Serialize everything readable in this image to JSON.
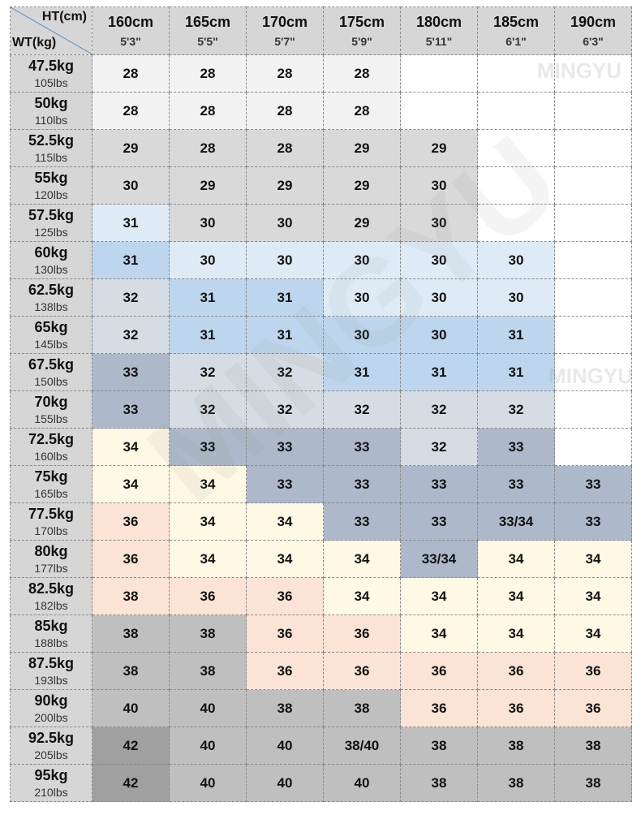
{
  "header": {
    "corner_ht": "HT(cm)",
    "corner_wt": "WT(kg)",
    "heights": [
      {
        "cm": "160cm",
        "ft": "5'3\""
      },
      {
        "cm": "165cm",
        "ft": "5'5\""
      },
      {
        "cm": "170cm",
        "ft": "5'7\""
      },
      {
        "cm": "175cm",
        "ft": "5'9\""
      },
      {
        "cm": "180cm",
        "ft": "5'11\""
      },
      {
        "cm": "185cm",
        "ft": "6'1\""
      },
      {
        "cm": "190cm",
        "ft": "6'3\""
      }
    ]
  },
  "watermark": "MINGYU",
  "colors": {
    "header": "#d6d6d6",
    "blank": "#ffffff",
    "light_gray": "#f2f2f2",
    "gray": "#d9d9d9",
    "light_blue": "#deebf6",
    "blue": "#bdd6ee",
    "blue_gray": "#d6dce4",
    "slate": "#adb9ca",
    "cream": "#fef2d0",
    "cream_light": "#fff8e5",
    "peach": "#fbe4d5",
    "mid_gray": "#bfbfbf",
    "dark_gray": "#a6a6a6",
    "darker_gray": "#a0a0a0"
  },
  "rows": [
    {
      "kg": "47.5kg",
      "lbs": "105lbs",
      "cells": [
        {
          "v": "28",
          "c": "light_gray"
        },
        {
          "v": "28",
          "c": "light_gray"
        },
        {
          "v": "28",
          "c": "light_gray"
        },
        {
          "v": "28",
          "c": "light_gray"
        },
        {
          "v": "",
          "c": "blank"
        },
        {
          "v": "",
          "c": "blank"
        },
        {
          "v": "",
          "c": "blank"
        }
      ]
    },
    {
      "kg": "50kg",
      "lbs": "110lbs",
      "cells": [
        {
          "v": "28",
          "c": "light_gray"
        },
        {
          "v": "28",
          "c": "light_gray"
        },
        {
          "v": "28",
          "c": "light_gray"
        },
        {
          "v": "28",
          "c": "light_gray"
        },
        {
          "v": "",
          "c": "blank"
        },
        {
          "v": "",
          "c": "blank"
        },
        {
          "v": "",
          "c": "blank"
        }
      ]
    },
    {
      "kg": "52.5kg",
      "lbs": "115lbs",
      "cells": [
        {
          "v": "29",
          "c": "gray"
        },
        {
          "v": "28",
          "c": "gray"
        },
        {
          "v": "28",
          "c": "gray"
        },
        {
          "v": "29",
          "c": "gray"
        },
        {
          "v": "29",
          "c": "gray"
        },
        {
          "v": "",
          "c": "blank"
        },
        {
          "v": "",
          "c": "blank"
        }
      ]
    },
    {
      "kg": "55kg",
      "lbs": "120lbs",
      "cells": [
        {
          "v": "30",
          "c": "gray"
        },
        {
          "v": "29",
          "c": "gray"
        },
        {
          "v": "29",
          "c": "gray"
        },
        {
          "v": "29",
          "c": "gray"
        },
        {
          "v": "30",
          "c": "gray"
        },
        {
          "v": "",
          "c": "blank"
        },
        {
          "v": "",
          "c": "blank"
        }
      ]
    },
    {
      "kg": "57.5kg",
      "lbs": "125lbs",
      "cells": [
        {
          "v": "31",
          "c": "light_blue"
        },
        {
          "v": "30",
          "c": "gray"
        },
        {
          "v": "30",
          "c": "gray"
        },
        {
          "v": "29",
          "c": "gray"
        },
        {
          "v": "30",
          "c": "gray"
        },
        {
          "v": "",
          "c": "blank"
        },
        {
          "v": "",
          "c": "blank"
        }
      ]
    },
    {
      "kg": "60kg",
      "lbs": "130lbs",
      "cells": [
        {
          "v": "31",
          "c": "blue"
        },
        {
          "v": "30",
          "c": "light_blue"
        },
        {
          "v": "30",
          "c": "light_blue"
        },
        {
          "v": "30",
          "c": "light_blue"
        },
        {
          "v": "30",
          "c": "light_blue"
        },
        {
          "v": "30",
          "c": "light_blue"
        },
        {
          "v": "",
          "c": "blank"
        }
      ]
    },
    {
      "kg": "62.5kg",
      "lbs": "138lbs",
      "cells": [
        {
          "v": "32",
          "c": "blue_gray"
        },
        {
          "v": "31",
          "c": "blue"
        },
        {
          "v": "31",
          "c": "blue"
        },
        {
          "v": "30",
          "c": "light_blue"
        },
        {
          "v": "30",
          "c": "light_blue"
        },
        {
          "v": "30",
          "c": "light_blue"
        },
        {
          "v": "",
          "c": "blank"
        }
      ]
    },
    {
      "kg": "65kg",
      "lbs": "145lbs",
      "cells": [
        {
          "v": "32",
          "c": "blue_gray"
        },
        {
          "v": "31",
          "c": "blue"
        },
        {
          "v": "31",
          "c": "blue"
        },
        {
          "v": "30",
          "c": "blue"
        },
        {
          "v": "30",
          "c": "blue"
        },
        {
          "v": "31",
          "c": "blue"
        },
        {
          "v": "",
          "c": "blank"
        }
      ]
    },
    {
      "kg": "67.5kg",
      "lbs": "150lbs",
      "cells": [
        {
          "v": "33",
          "c": "slate"
        },
        {
          "v": "32",
          "c": "blue_gray"
        },
        {
          "v": "32",
          "c": "blue_gray"
        },
        {
          "v": "31",
          "c": "blue"
        },
        {
          "v": "31",
          "c": "blue"
        },
        {
          "v": "31",
          "c": "blue"
        },
        {
          "v": "",
          "c": "blank"
        }
      ]
    },
    {
      "kg": "70kg",
      "lbs": "155lbs",
      "cells": [
        {
          "v": "33",
          "c": "slate"
        },
        {
          "v": "32",
          "c": "blue_gray"
        },
        {
          "v": "32",
          "c": "blue_gray"
        },
        {
          "v": "32",
          "c": "blue_gray"
        },
        {
          "v": "32",
          "c": "blue_gray"
        },
        {
          "v": "32",
          "c": "blue_gray"
        },
        {
          "v": "",
          "c": "blank"
        }
      ]
    },
    {
      "kg": "72.5kg",
      "lbs": "160lbs",
      "cells": [
        {
          "v": "34",
          "c": "cream_light"
        },
        {
          "v": "33",
          "c": "slate"
        },
        {
          "v": "33",
          "c": "slate"
        },
        {
          "v": "33",
          "c": "slate"
        },
        {
          "v": "32",
          "c": "blue_gray"
        },
        {
          "v": "33",
          "c": "slate"
        },
        {
          "v": "",
          "c": "blank"
        }
      ]
    },
    {
      "kg": "75kg",
      "lbs": "165lbs",
      "cells": [
        {
          "v": "34",
          "c": "cream_light"
        },
        {
          "v": "34",
          "c": "cream_light"
        },
        {
          "v": "33",
          "c": "slate"
        },
        {
          "v": "33",
          "c": "slate"
        },
        {
          "v": "33",
          "c": "slate"
        },
        {
          "v": "33",
          "c": "slate"
        },
        {
          "v": "33",
          "c": "slate"
        }
      ]
    },
    {
      "kg": "77.5kg",
      "lbs": "170lbs",
      "cells": [
        {
          "v": "36",
          "c": "peach"
        },
        {
          "v": "34",
          "c": "cream_light"
        },
        {
          "v": "34",
          "c": "cream_light"
        },
        {
          "v": "33",
          "c": "slate"
        },
        {
          "v": "33",
          "c": "slate"
        },
        {
          "v": "33/34",
          "c": "slate"
        },
        {
          "v": "33",
          "c": "slate"
        }
      ]
    },
    {
      "kg": "80kg",
      "lbs": "177lbs",
      "cells": [
        {
          "v": "36",
          "c": "peach"
        },
        {
          "v": "34",
          "c": "cream_light"
        },
        {
          "v": "34",
          "c": "cream_light"
        },
        {
          "v": "34",
          "c": "cream_light"
        },
        {
          "v": "33/34",
          "c": "slate"
        },
        {
          "v": "34",
          "c": "cream_light"
        },
        {
          "v": "34",
          "c": "cream_light"
        }
      ]
    },
    {
      "kg": "82.5kg",
      "lbs": "182lbs",
      "cells": [
        {
          "v": "38",
          "c": "peach"
        },
        {
          "v": "36",
          "c": "peach"
        },
        {
          "v": "36",
          "c": "peach"
        },
        {
          "v": "34",
          "c": "cream_light"
        },
        {
          "v": "34",
          "c": "cream_light"
        },
        {
          "v": "34",
          "c": "cream_light"
        },
        {
          "v": "34",
          "c": "cream_light"
        }
      ]
    },
    {
      "kg": "85kg",
      "lbs": "188lbs",
      "cells": [
        {
          "v": "38",
          "c": "mid_gray"
        },
        {
          "v": "38",
          "c": "mid_gray"
        },
        {
          "v": "36",
          "c": "peach"
        },
        {
          "v": "36",
          "c": "peach"
        },
        {
          "v": "34",
          "c": "cream_light"
        },
        {
          "v": "34",
          "c": "cream_light"
        },
        {
          "v": "34",
          "c": "cream_light"
        }
      ]
    },
    {
      "kg": "87.5kg",
      "lbs": "193lbs",
      "cells": [
        {
          "v": "38",
          "c": "mid_gray"
        },
        {
          "v": "38",
          "c": "mid_gray"
        },
        {
          "v": "36",
          "c": "peach"
        },
        {
          "v": "36",
          "c": "peach"
        },
        {
          "v": "36",
          "c": "peach"
        },
        {
          "v": "36",
          "c": "peach"
        },
        {
          "v": "36",
          "c": "peach"
        }
      ]
    },
    {
      "kg": "90kg",
      "lbs": "200lbs",
      "cells": [
        {
          "v": "40",
          "c": "mid_gray"
        },
        {
          "v": "40",
          "c": "mid_gray"
        },
        {
          "v": "38",
          "c": "mid_gray"
        },
        {
          "v": "38",
          "c": "mid_gray"
        },
        {
          "v": "36",
          "c": "peach"
        },
        {
          "v": "36",
          "c": "peach"
        },
        {
          "v": "36",
          "c": "peach"
        }
      ]
    },
    {
      "kg": "92.5kg",
      "lbs": "205lbs",
      "cells": [
        {
          "v": "42",
          "c": "darker_gray"
        },
        {
          "v": "40",
          "c": "mid_gray"
        },
        {
          "v": "40",
          "c": "mid_gray"
        },
        {
          "v": "38/40",
          "c": "mid_gray"
        },
        {
          "v": "38",
          "c": "mid_gray"
        },
        {
          "v": "38",
          "c": "mid_gray"
        },
        {
          "v": "38",
          "c": "mid_gray"
        }
      ]
    },
    {
      "kg": "95kg",
      "lbs": "210lbs",
      "cells": [
        {
          "v": "42",
          "c": "darker_gray"
        },
        {
          "v": "40",
          "c": "mid_gray"
        },
        {
          "v": "40",
          "c": "mid_gray"
        },
        {
          "v": "40",
          "c": "mid_gray"
        },
        {
          "v": "38",
          "c": "mid_gray"
        },
        {
          "v": "38",
          "c": "mid_gray"
        },
        {
          "v": "38",
          "c": "mid_gray"
        }
      ]
    }
  ]
}
